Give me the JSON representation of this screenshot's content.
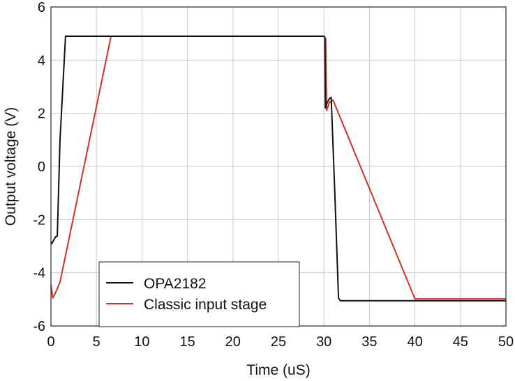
{
  "chart_data": {
    "type": "line",
    "title": "",
    "xlabel": "Time (uS)",
    "ylabel": "Output voltage (V)",
    "xlim": [
      0,
      50
    ],
    "ylim": [
      -6,
      6
    ],
    "x_ticks": [
      0,
      5,
      10,
      15,
      20,
      25,
      30,
      35,
      40,
      45,
      50
    ],
    "y_ticks": [
      6,
      4,
      2,
      0,
      -2,
      -4,
      -6
    ],
    "x_tick_labels": [
      "0",
      "5",
      "10",
      "15",
      "20",
      "25",
      "30",
      "35",
      "40",
      "45",
      "50"
    ],
    "y_tick_labels": [
      "6",
      "4",
      "2",
      "0",
      "-2",
      "-4",
      "-6"
    ],
    "grid": true,
    "legend_position": "bottom-left",
    "series": [
      {
        "name": "OPA2182",
        "color": "#111111",
        "x": [
          0,
          0.1,
          0.5,
          0.7,
          1.0,
          1.6,
          6.6,
          30.0,
          30.1,
          30.15,
          30.3,
          30.6,
          30.8,
          31.2,
          31.6,
          31.8,
          50
        ],
        "y": [
          -2.85,
          -2.9,
          -2.65,
          -2.62,
          1.0,
          4.9,
          4.9,
          4.9,
          4.85,
          2.2,
          2.35,
          2.55,
          2.6,
          -1.0,
          -4.95,
          -5.05,
          -5.05
        ]
      },
      {
        "name": "Classic input stage",
        "color": "#d0302a",
        "x": [
          0,
          0.2,
          0.5,
          1.0,
          6.6,
          30.0,
          30.2,
          30.3,
          30.6,
          31.0,
          40.0,
          50
        ],
        "y": [
          -4.45,
          -4.95,
          -4.75,
          -4.35,
          4.9,
          4.9,
          4.8,
          2.1,
          2.4,
          2.5,
          -4.98,
          -4.98
        ]
      }
    ]
  }
}
